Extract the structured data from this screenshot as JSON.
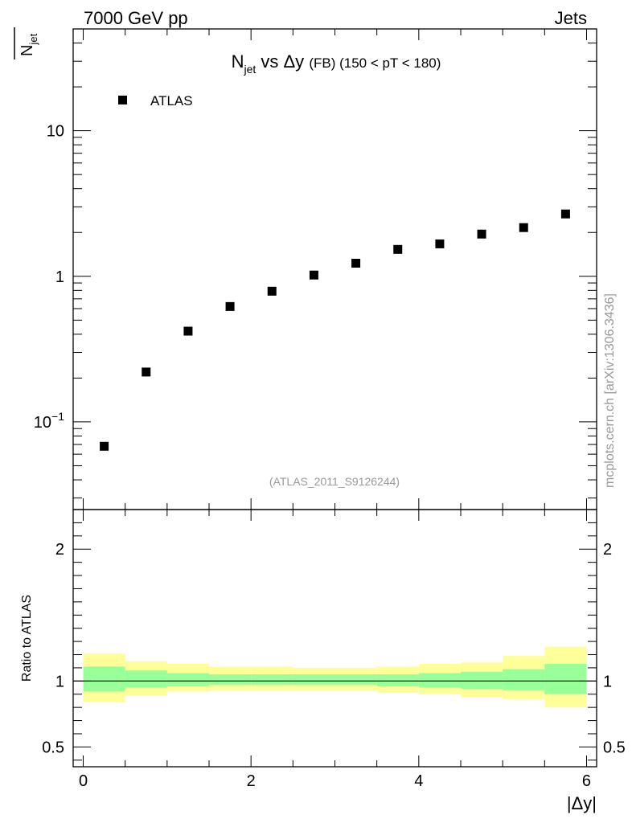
{
  "header": {
    "left": "7000 GeV pp",
    "right": "Jets"
  },
  "side_label": "mcplots.cern.ch [arXiv:1306.3436]",
  "watermark": "(ATLAS_2011_S9126244)",
  "chart_data": [
    {
      "type": "scatter",
      "title_parts": {
        "main": "N",
        "sub": "jet",
        "mid": " vs Δy ",
        "small": "(FB)",
        "tail": " (150 < pT < 180)"
      },
      "ylabel_parts": {
        "main": "N",
        "sub": "jet"
      },
      "yscale": "log",
      "xlim": [
        -0.12,
        6.12
      ],
      "ylim": [
        0.025,
        50
      ],
      "yticks": [
        {
          "value": 0.1,
          "label": "10",
          "sup": "−1"
        },
        {
          "value": 1,
          "label": "1"
        },
        {
          "value": 10,
          "label": "10"
        }
      ],
      "legend": {
        "placement": "top-left",
        "entries": [
          "ATLAS"
        ]
      },
      "series": [
        {
          "name": "ATLAS",
          "x": [
            0.25,
            0.75,
            1.25,
            1.75,
            2.25,
            2.75,
            3.25,
            3.75,
            4.25,
            4.75,
            5.25,
            5.75
          ],
          "y": [
            0.068,
            0.22,
            0.42,
            0.62,
            0.79,
            1.02,
            1.23,
            1.53,
            1.67,
            1.95,
            2.16,
            2.68
          ]
        }
      ]
    },
    {
      "type": "area",
      "ylabel": "Ratio to ATLAS",
      "xlabel": "|Δy|",
      "xlim": [
        -0.12,
        6.12
      ],
      "ylim": [
        0.35,
        2.3
      ],
      "xticks": [
        0,
        2,
        4,
        6
      ],
      "yticks": [
        0.5,
        1,
        2
      ],
      "reference_line": 1,
      "bins": [
        0,
        0.5,
        1.0,
        1.5,
        2.0,
        2.5,
        3.0,
        3.5,
        4.0,
        4.5,
        5.0,
        5.5,
        6.0
      ],
      "bands": [
        {
          "name": "total",
          "color": "#ffff99",
          "lo": [
            0.84,
            0.89,
            0.92,
            0.93,
            0.93,
            0.93,
            0.93,
            0.91,
            0.9,
            0.88,
            0.86,
            0.8
          ],
          "hi": [
            1.21,
            1.15,
            1.13,
            1.11,
            1.11,
            1.1,
            1.1,
            1.11,
            1.13,
            1.14,
            1.19,
            1.26
          ]
        },
        {
          "name": "stat",
          "color": "#99ff99",
          "lo": [
            0.92,
            0.95,
            0.96,
            0.97,
            0.97,
            0.97,
            0.97,
            0.96,
            0.95,
            0.94,
            0.93,
            0.9
          ],
          "hi": [
            1.11,
            1.08,
            1.06,
            1.05,
            1.05,
            1.05,
            1.05,
            1.05,
            1.06,
            1.07,
            1.09,
            1.13
          ]
        }
      ]
    }
  ]
}
